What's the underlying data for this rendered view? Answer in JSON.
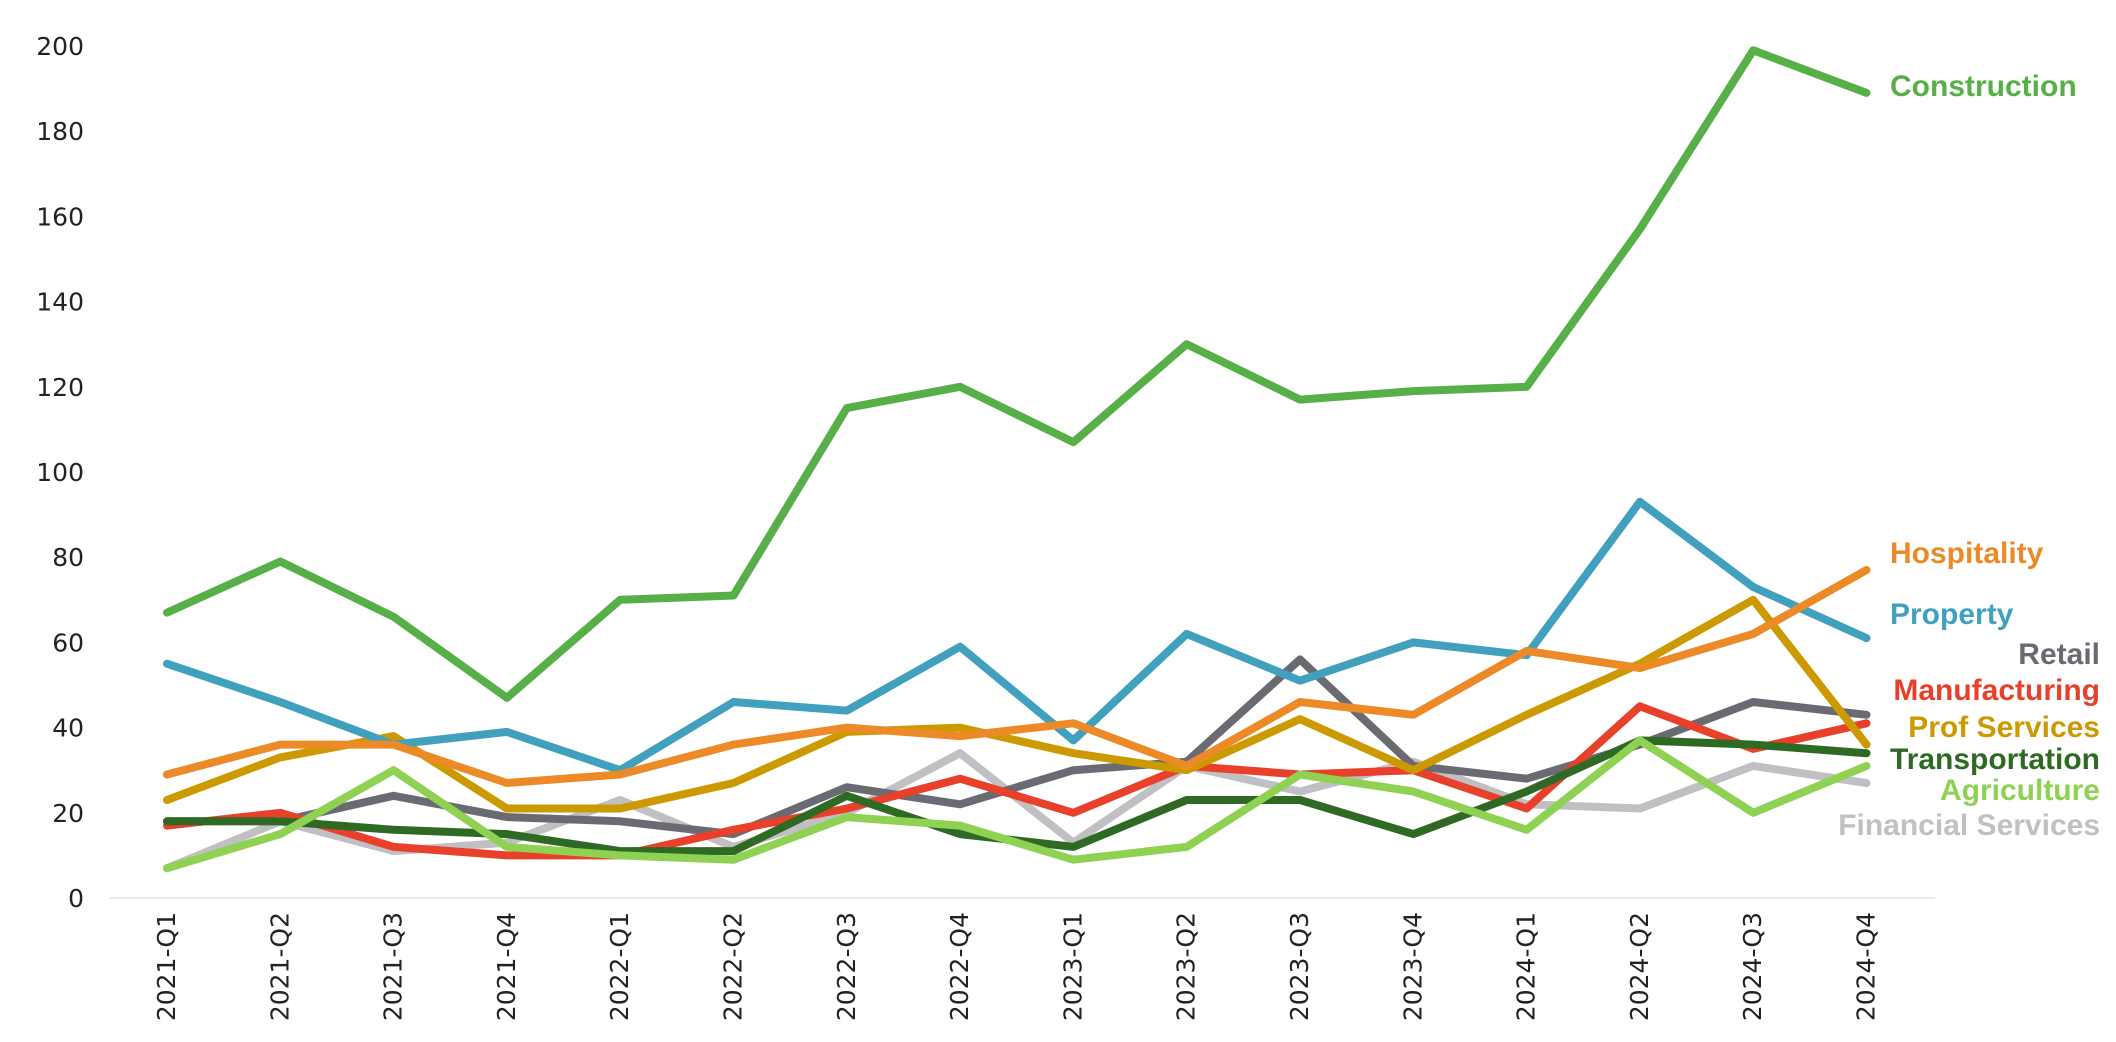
{
  "chart_data": {
    "type": "line",
    "title": "",
    "xlabel": "",
    "ylabel": "",
    "ylim": [
      0,
      200
    ],
    "yticks": [
      0,
      20,
      40,
      60,
      80,
      100,
      120,
      140,
      160,
      180,
      200
    ],
    "grid": false,
    "legend": "right, labels at line ends",
    "categories": [
      "2021-Q1",
      "2021-Q2",
      "2021-Q3",
      "2021-Q4",
      "2022-Q1",
      "2022-Q2",
      "2022-Q3",
      "2022-Q4",
      "2023-Q1",
      "2023-Q2",
      "2023-Q3",
      "2023-Q4",
      "2024-Q1",
      "2024-Q2",
      "2024-Q3",
      "2024-Q4"
    ],
    "series": [
      {
        "name": "Financial Services",
        "color": "#c0c0c4",
        "values": [
          7,
          18,
          11,
          13,
          23,
          12,
          20,
          34,
          13,
          31,
          25,
          32,
          22,
          21,
          31,
          27
        ]
      },
      {
        "name": "Retail",
        "color": "#6a6a72",
        "values": [
          18,
          18,
          24,
          19,
          18,
          15,
          26,
          22,
          30,
          32,
          56,
          31,
          28,
          36,
          46,
          43
        ]
      },
      {
        "name": "Manufacturing",
        "color": "#e8402a",
        "values": [
          17,
          20,
          12,
          10,
          10,
          16,
          21,
          28,
          20,
          31,
          29,
          30,
          21,
          45,
          35,
          41
        ]
      },
      {
        "name": "Transportation",
        "color": "#2f6a24",
        "values": [
          18,
          18,
          16,
          15,
          11,
          11,
          24,
          15,
          12,
          23,
          23,
          15,
          25,
          37,
          36,
          34
        ]
      },
      {
        "name": "Agriculture",
        "color": "#8fd152",
        "values": [
          7,
          15,
          30,
          12,
          10,
          9,
          19,
          17,
          9,
          12,
          29,
          25,
          16,
          37,
          20,
          31
        ]
      },
      {
        "name": "Prof Services",
        "color": "#cc9a00",
        "values": [
          23,
          33,
          38,
          21,
          21,
          27,
          39,
          40,
          34,
          30,
          42,
          30,
          43,
          55,
          70,
          36
        ]
      },
      {
        "name": "Property",
        "color": "#41a0bd",
        "values": [
          55,
          46,
          36,
          39,
          30,
          46,
          44,
          59,
          37,
          62,
          51,
          60,
          57,
          93,
          73,
          61
        ]
      },
      {
        "name": "Hospitality",
        "color": "#ec8a28",
        "values": [
          29,
          36,
          36,
          27,
          29,
          36,
          40,
          38,
          41,
          31,
          46,
          43,
          58,
          54,
          62,
          77
        ]
      },
      {
        "name": "Construction",
        "color": "#57b047",
        "values": [
          67,
          79,
          66,
          47,
          70,
          71,
          115,
          120,
          107,
          130,
          117,
          119,
          120,
          157,
          199,
          189
        ]
      }
    ]
  }
}
